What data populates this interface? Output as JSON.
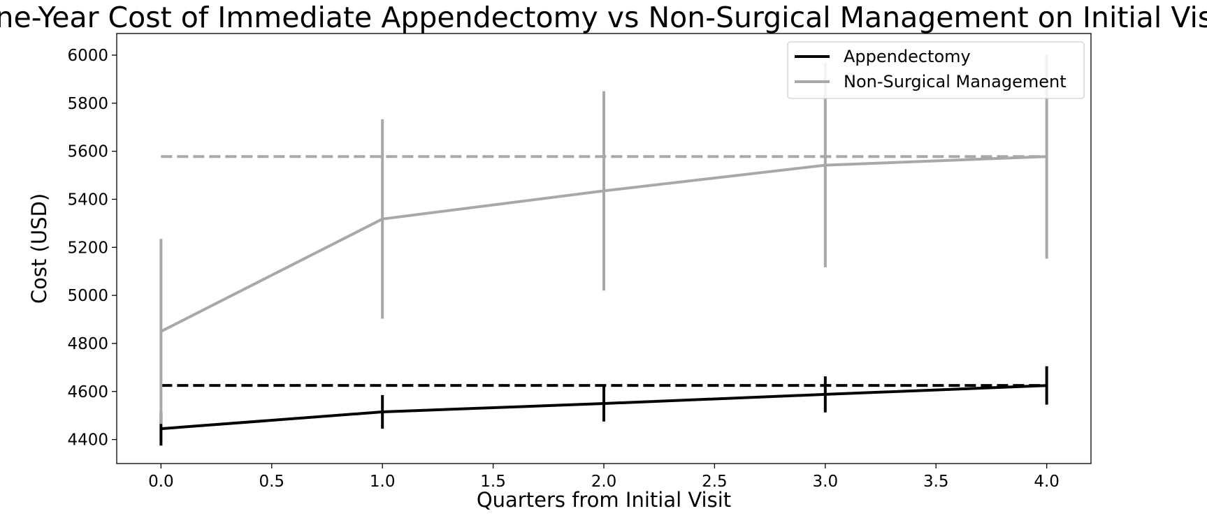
{
  "chart_data": {
    "type": "line",
    "title": "One-Year Cost of Immediate Appendectomy vs Non-Surgical Management on Initial Visit",
    "xlabel": "Quarters from Initial Visit",
    "ylabel": "Cost (USD)",
    "xlim": [
      -0.2,
      4.2
    ],
    "ylim": [
      4300,
      6090
    ],
    "xticks": [
      0.0,
      0.5,
      1.0,
      1.5,
      2.0,
      2.5,
      3.0,
      3.5,
      4.0
    ],
    "xtick_labels": [
      "0.0",
      "0.5",
      "1.0",
      "1.5",
      "2.0",
      "2.5",
      "3.0",
      "3.5",
      "4.0"
    ],
    "yticks": [
      4400,
      4600,
      4800,
      5000,
      5200,
      5400,
      5600,
      5800,
      6000
    ],
    "ytick_labels": [
      "4400",
      "4600",
      "4800",
      "5000",
      "5200",
      "5400",
      "5600",
      "5800",
      "6000"
    ],
    "grid": false,
    "legend_position": "top-right",
    "x": [
      0,
      1,
      2,
      3,
      4
    ],
    "series": [
      {
        "name": "Appendectomy",
        "color": "#000000",
        "values": [
          4445,
          4515,
          4550,
          4588,
          4625
        ],
        "error": [
          70,
          70,
          75,
          75,
          80
        ],
        "reference_line": 4625
      },
      {
        "name": "Non-Surgical Management",
        "color": "#a8a8a8",
        "values": [
          4850,
          5318,
          5435,
          5542,
          5578
        ],
        "error": [
          385,
          415,
          415,
          425,
          425
        ],
        "reference_line": 5578
      }
    ]
  }
}
